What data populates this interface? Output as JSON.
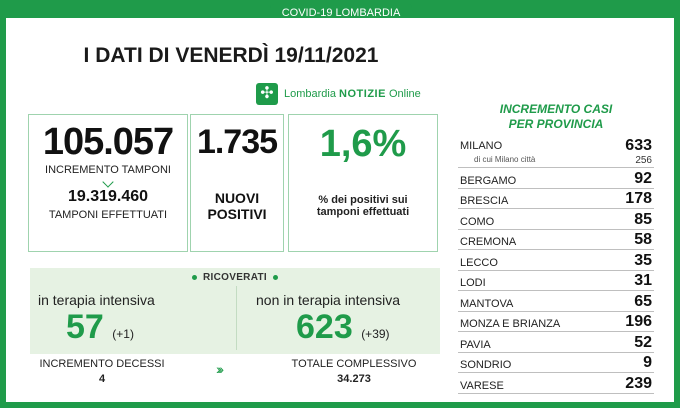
{
  "banner": "COVID-19 LOMBARDIA",
  "title": "I DATI DI VENERDÌ 19/11/2021",
  "source": {
    "part1": "Lombardia ",
    "part2": "NOTIZIE",
    "part3": " Online"
  },
  "tamponi": {
    "value": "105.057",
    "label": "INCREMENTO TAMPONI",
    "total": "19.319.460",
    "total_label": "TAMPONI EFFETTUATI"
  },
  "positivi": {
    "value": "1.735",
    "label1": "NUOVI",
    "label2": "POSITIVI"
  },
  "percent": {
    "value": "1,6%",
    "label1": "% dei positivi sui",
    "label2": "tamponi effettuati"
  },
  "ricoverati": {
    "label": "RICOVERATI",
    "ti_label": "in terapia intensiva",
    "ti_value": "57",
    "ti_delta": "(+1)",
    "nti_label": "non in terapia intensiva",
    "nti_value": "623",
    "nti_delta": "(+39)"
  },
  "decessi": {
    "label": "INCREMENTO DECESSI",
    "value": "4",
    "total_label": "TOTALE COMPLESSIVO",
    "total": "34.273"
  },
  "province": {
    "title1": "INCREMENTO CASI",
    "title2": "PER PROVINCIA",
    "milano_sub": "di cui Milano città",
    "milano_sub_value": "256",
    "items": [
      {
        "name": "MILANO",
        "value": "633"
      },
      {
        "name": "BERGAMO",
        "value": "92"
      },
      {
        "name": "BRESCIA",
        "value": "178"
      },
      {
        "name": "COMO",
        "value": "85"
      },
      {
        "name": "CREMONA",
        "value": "58"
      },
      {
        "name": "LECCO",
        "value": "35"
      },
      {
        "name": "LODI",
        "value": "31"
      },
      {
        "name": "MANTOVA",
        "value": "65"
      },
      {
        "name": "MONZA E BRIANZA",
        "value": "196"
      },
      {
        "name": "PAVIA",
        "value": "52"
      },
      {
        "name": "SONDRIO",
        "value": "9"
      },
      {
        "name": "VARESE",
        "value": "239"
      }
    ]
  },
  "colors": {
    "brand_green": "#1f9b4a",
    "panel_green": "#e6f2e3"
  }
}
